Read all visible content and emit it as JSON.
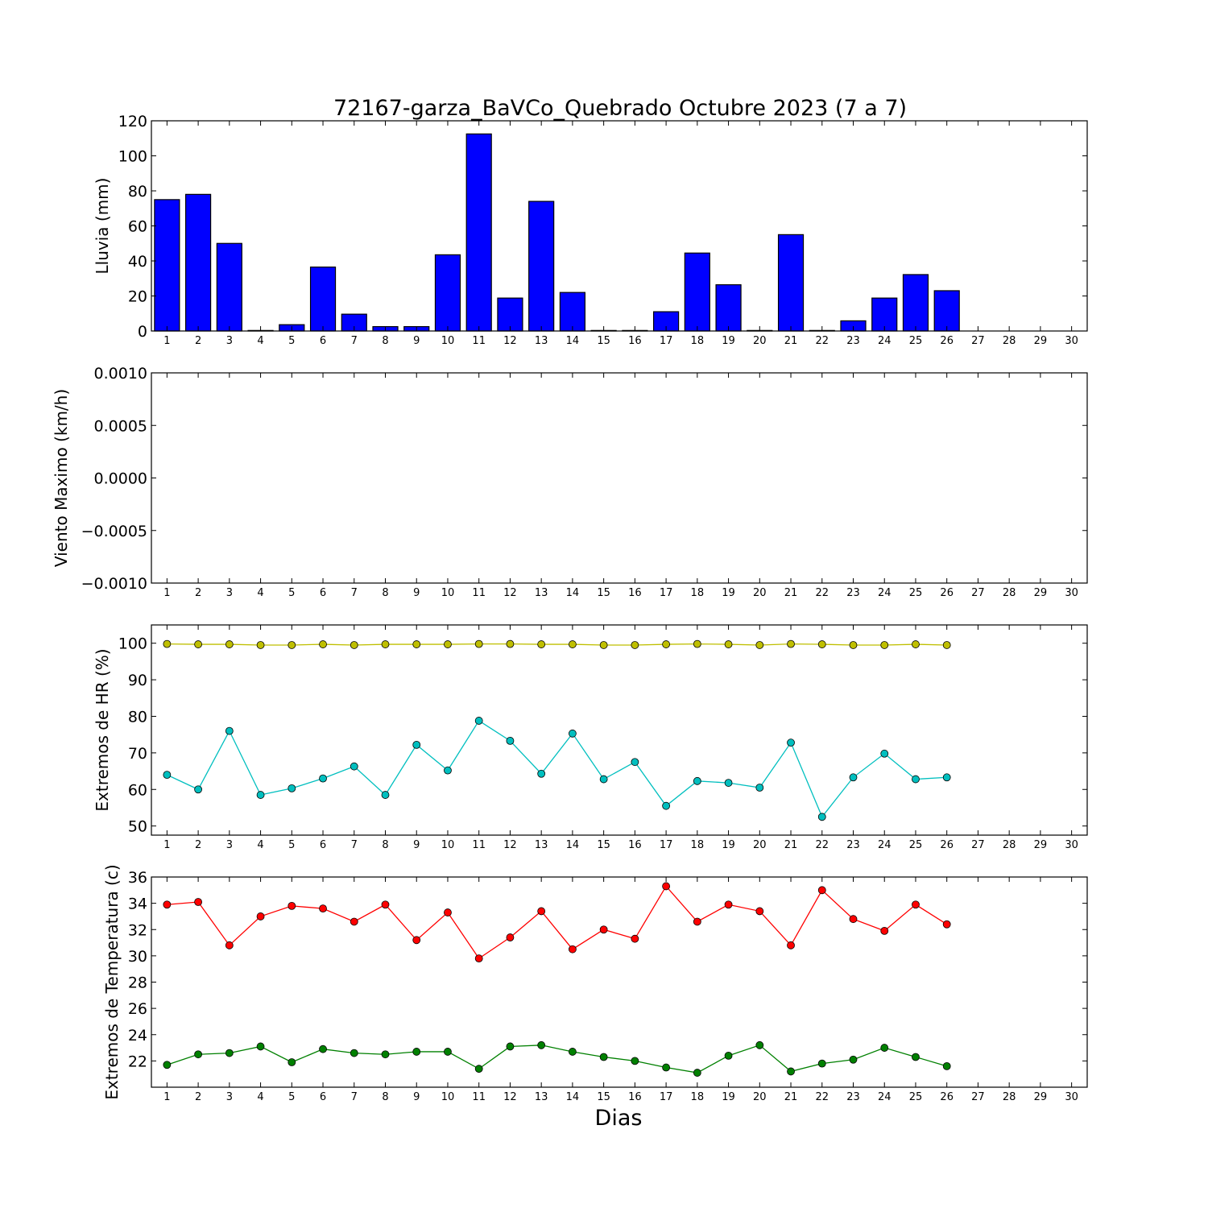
{
  "chart_data": {
    "title": "72167-garza_BaVCo_Quebrado Octubre 2023  (7 a 7)",
    "xlabel": "Dias",
    "x_ticks": [
      1,
      2,
      3,
      4,
      5,
      6,
      7,
      8,
      9,
      10,
      11,
      12,
      13,
      14,
      15,
      16,
      17,
      18,
      19,
      20,
      21,
      22,
      23,
      24,
      25,
      26,
      27,
      28,
      29,
      30
    ],
    "panels": [
      {
        "type": "bar",
        "ylabel": "Lluvia (mm)",
        "ylim": [
          0,
          120
        ],
        "yticks": [
          0,
          20,
          40,
          60,
          80,
          100,
          120
        ],
        "ytick_labels": [
          "0",
          "20",
          "40",
          "60",
          "80",
          "100",
          "120"
        ],
        "series": [
          {
            "color": "#0000ff",
            "x": [
              1,
              2,
              3,
              4,
              5,
              6,
              7,
              8,
              9,
              10,
              11,
              12,
              13,
              14,
              15,
              16,
              17,
              18,
              19,
              20,
              21,
              22,
              23,
              24,
              25,
              26
            ],
            "values": [
              75,
              78,
              50,
              0.3,
              3.6,
              36.5,
              9.6,
              2.5,
              2.5,
              43.5,
              112.5,
              18.8,
              74,
              22,
              0.3,
              0.3,
              11,
              44.5,
              26.4,
              0.3,
              55,
              0.3,
              5.8,
              18.8,
              32.2,
              23
            ]
          }
        ]
      },
      {
        "type": "line",
        "ylabel": "Viento Maximo (km/h)",
        "ylim": [
          -0.001,
          0.001
        ],
        "yticks": [
          -0.001,
          -0.0005,
          0,
          0.0005,
          0.001
        ],
        "ytick_labels": [
          "−0.0010",
          "−0.0005",
          "0.0000",
          "0.0005",
          "0.0010"
        ],
        "series": []
      },
      {
        "type": "line",
        "ylabel": "Extremos de HR (%)",
        "ylim": [
          47.5,
          105
        ],
        "yticks": [
          50,
          60,
          70,
          80,
          90,
          100
        ],
        "ytick_labels": [
          "50",
          "60",
          "70",
          "80",
          "90",
          "100"
        ],
        "series": [
          {
            "color": "#bfbf00",
            "x": [
              1,
              2,
              3,
              4,
              5,
              6,
              7,
              8,
              9,
              10,
              11,
              12,
              13,
              14,
              15,
              16,
              17,
              18,
              19,
              20,
              21,
              22,
              23,
              24,
              25,
              26
            ],
            "values": [
              99.8,
              99.7,
              99.7,
              99.5,
              99.5,
              99.7,
              99.5,
              99.7,
              99.7,
              99.7,
              99.8,
              99.8,
              99.7,
              99.7,
              99.5,
              99.5,
              99.7,
              99.8,
              99.7,
              99.5,
              99.8,
              99.7,
              99.5,
              99.5,
              99.7,
              99.5
            ]
          },
          {
            "color": "#00bfbf",
            "x": [
              1,
              2,
              3,
              4,
              5,
              6,
              7,
              8,
              9,
              10,
              11,
              12,
              13,
              14,
              15,
              16,
              17,
              18,
              19,
              20,
              21,
              22,
              23,
              24,
              25,
              26
            ],
            "values": [
              64,
              60,
              76,
              58.5,
              60.3,
              63,
              66.3,
              58.5,
              72.2,
              65.2,
              78.8,
              73.3,
              64.3,
              75.3,
              62.8,
              67.5,
              55.5,
              62.3,
              61.8,
              60.5,
              72.8,
              52.5,
              63.3,
              69.8,
              62.8,
              63.3
            ]
          }
        ]
      },
      {
        "type": "line",
        "ylabel": "Extremos de Temperatura (c)",
        "ylim": [
          20,
          36
        ],
        "yticks": [
          22,
          24,
          26,
          28,
          30,
          32,
          34,
          36
        ],
        "ytick_labels": [
          "22",
          "24",
          "26",
          "28",
          "30",
          "32",
          "34",
          "36"
        ],
        "series": [
          {
            "color": "#ff0000",
            "x": [
              1,
              2,
              3,
              4,
              5,
              6,
              7,
              8,
              9,
              10,
              11,
              12,
              13,
              14,
              15,
              16,
              17,
              18,
              19,
              20,
              21,
              22,
              23,
              24,
              25,
              26
            ],
            "values": [
              33.9,
              34.1,
              30.8,
              33,
              33.8,
              33.6,
              32.6,
              33.9,
              31.2,
              33.3,
              29.8,
              31.4,
              33.4,
              30.5,
              32,
              31.3,
              35.3,
              32.6,
              33.9,
              33.4,
              30.8,
              35,
              32.8,
              31.9,
              33.9,
              32.4
            ]
          },
          {
            "color": "#008000",
            "x": [
              1,
              2,
              3,
              4,
              5,
              6,
              7,
              8,
              9,
              10,
              11,
              12,
              13,
              14,
              15,
              16,
              17,
              18,
              19,
              20,
              21,
              22,
              23,
              24,
              25,
              26
            ],
            "values": [
              21.7,
              22.5,
              22.6,
              23.1,
              21.9,
              22.9,
              22.6,
              22.5,
              22.7,
              22.7,
              21.4,
              23.1,
              23.2,
              22.7,
              22.3,
              22,
              21.5,
              21.1,
              22.4,
              23.2,
              21.2,
              21.8,
              22.1,
              23,
              22.3,
              21.6
            ]
          }
        ]
      }
    ]
  }
}
